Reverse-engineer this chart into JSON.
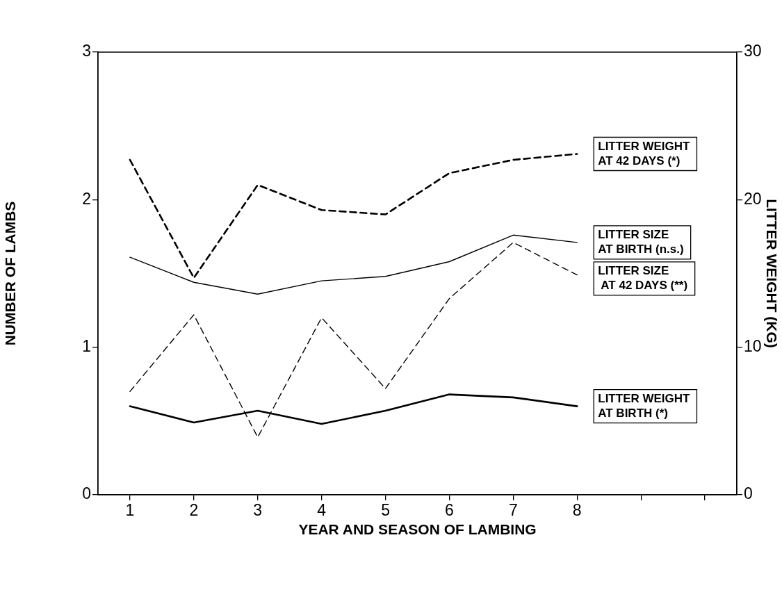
{
  "chart_data": {
    "type": "line",
    "xlabel": "YEAR AND SEASON OF LAMBING",
    "ylabel": "NUMBER OF LAMBS",
    "y2label": "LITTER WEIGHT (KG)",
    "x": [
      1,
      2,
      3,
      4,
      5,
      6,
      7,
      8
    ],
    "xlim": [
      0.5,
      10.5
    ],
    "xticks": [
      1,
      2,
      3,
      4,
      5,
      6,
      7,
      8,
      {
        "value": 9,
        "label": null
      },
      {
        "value": 10,
        "label": null
      }
    ],
    "ylim": [
      0,
      3
    ],
    "yticks": [
      0,
      1,
      2,
      3
    ],
    "y2lim": [
      0,
      30
    ],
    "y2ticks": [
      0,
      10,
      20,
      30
    ],
    "grid": false,
    "legend": false,
    "marker": "none",
    "series": [
      {
        "name": "LITTER WEIGHT\nAT 42 DAYS (*)",
        "color": "#000000",
        "axis": "y2",
        "line_style": "dashed",
        "values": [
          22.7,
          14.7,
          21.0,
          19.3,
          19.0,
          21.8,
          22.7,
          23.1
        ]
      },
      {
        "name": "LITTER SIZE\nAT BIRTH (n.s.)",
        "color": "#000000",
        "line_style": "solid",
        "values": [
          1.61,
          1.44,
          1.36,
          1.45,
          1.48,
          1.58,
          1.76,
          1.71
        ]
      },
      {
        "name": "LITTER SIZE\n AT 42 DAYS (**)",
        "color": "#000000",
        "line_style": "dashed",
        "values": [
          0.7,
          1.22,
          0.39,
          1.2,
          0.72,
          1.33,
          1.71,
          1.49
        ]
      },
      {
        "name": "LITTER WEIGHT\nAT BIRTH (*)",
        "color": "#000000",
        "axis": "y2",
        "line_style": "solid",
        "values": [
          6.0,
          4.9,
          5.7,
          4.8,
          5.7,
          6.8,
          6.6,
          6.0
        ]
      }
    ]
  }
}
